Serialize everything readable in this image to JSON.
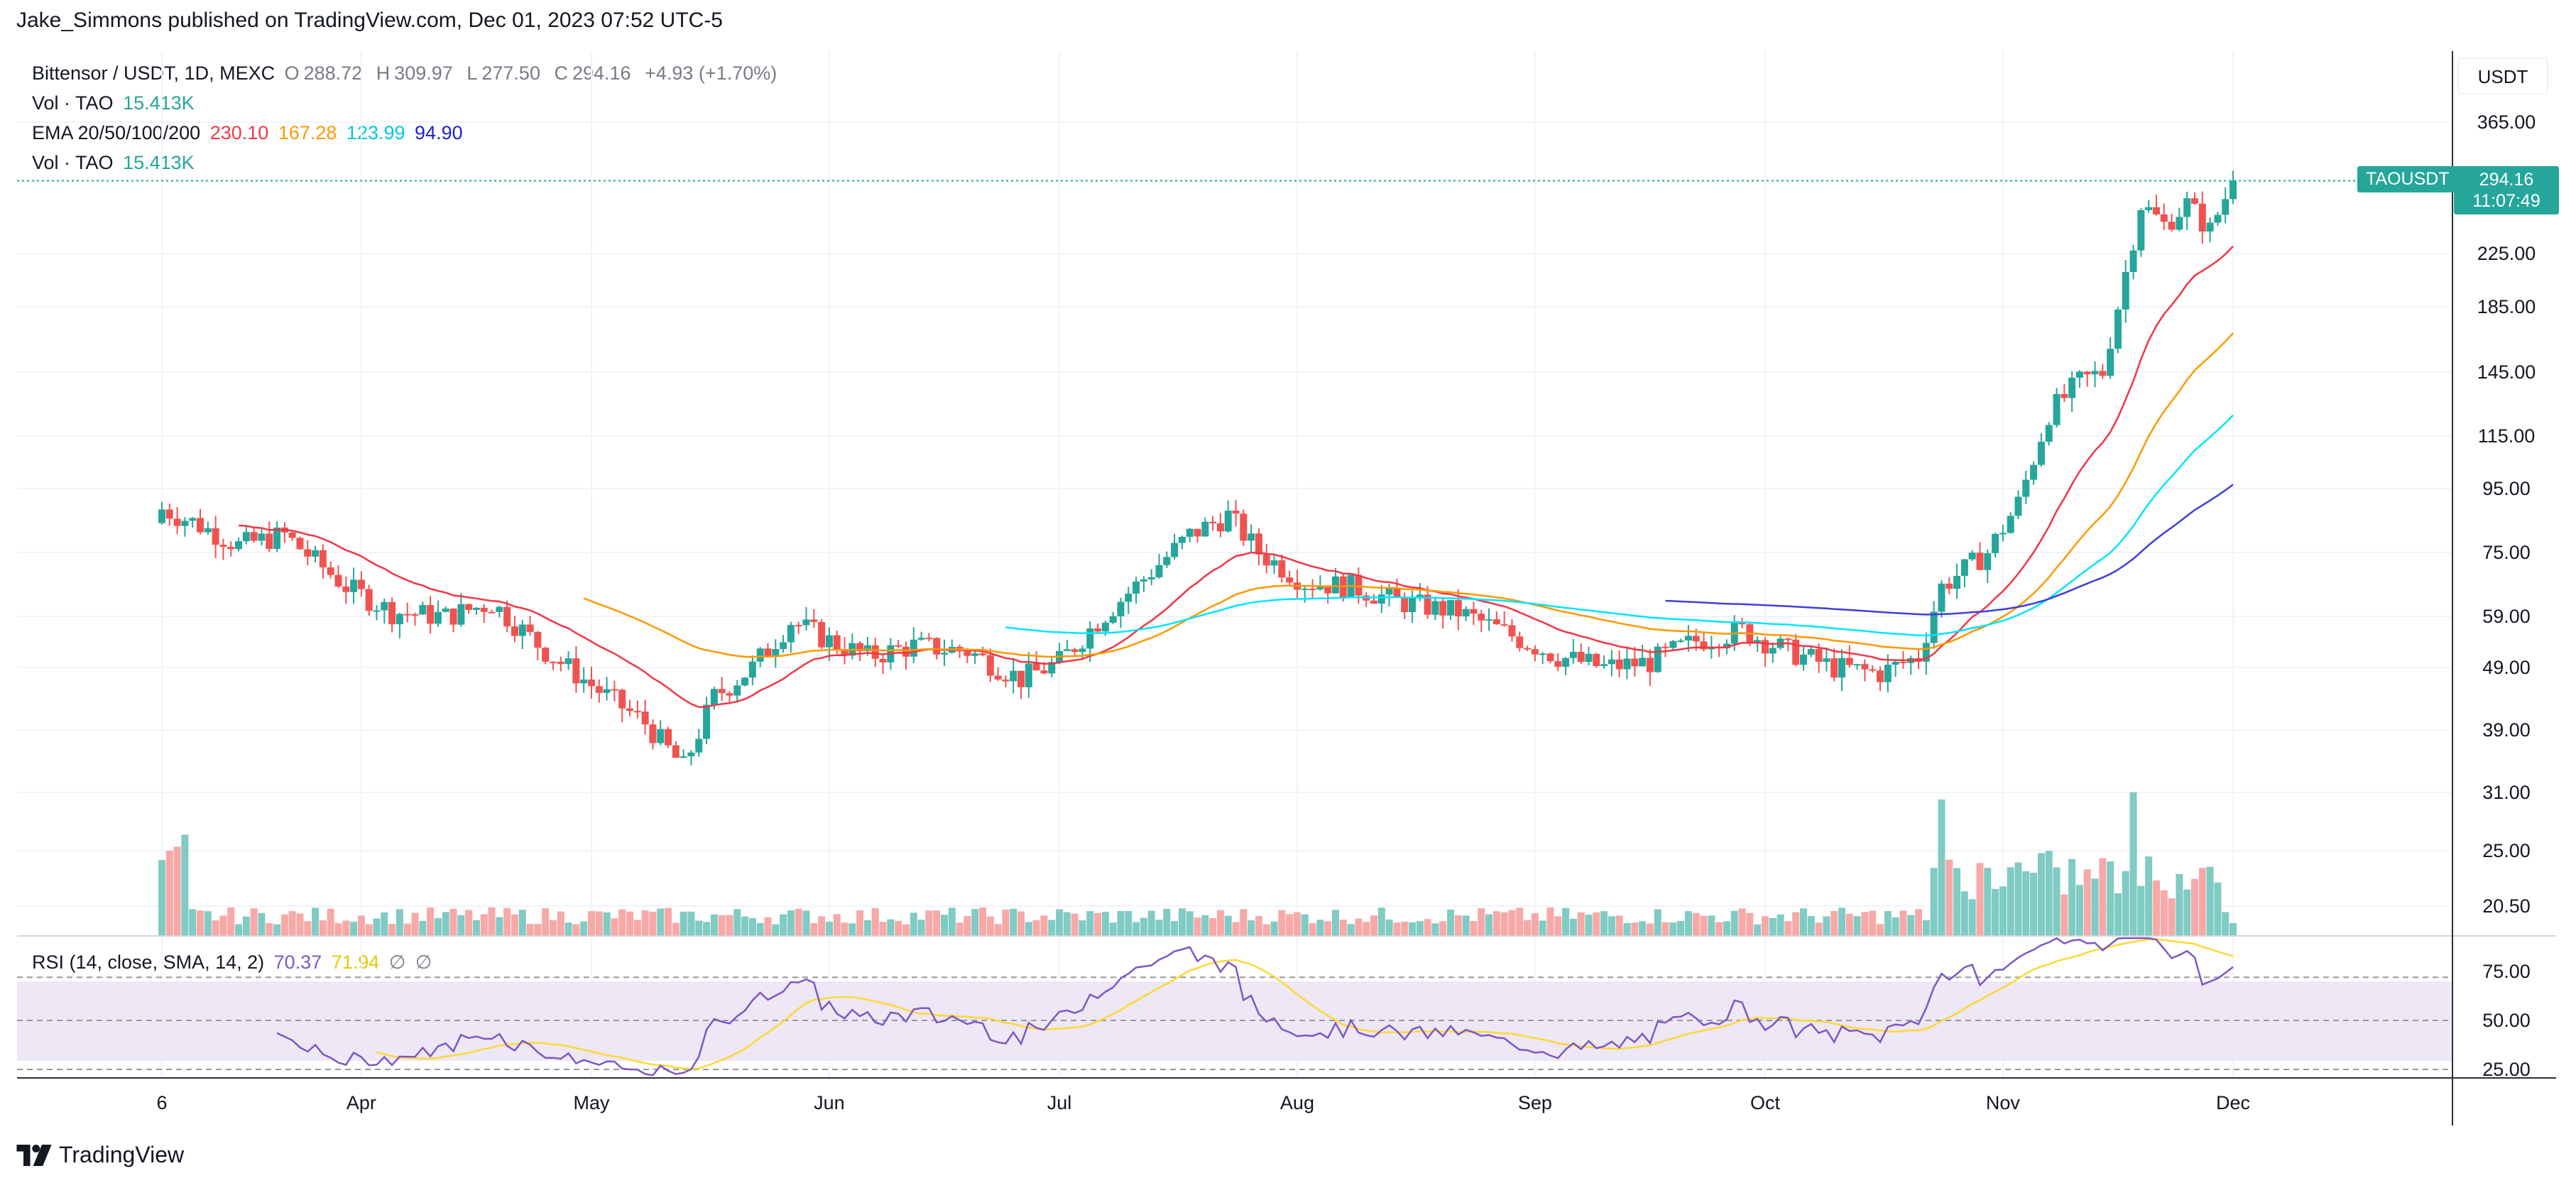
{
  "header": {
    "text": "Jake_Simmons published on TradingView.com, Dec 01, 2023 07:52 UTC-5"
  },
  "legend": {
    "symbol": "Bittensor / USDT, 1D, MEXC",
    "o_label": "O",
    "o": "288.72",
    "h_label": "H",
    "h": "309.97",
    "l_label": "L",
    "l": "277.50",
    "c_label": "C",
    "c": "294.16",
    "change": "+4.93 (+1.70%)",
    "vol1_label": "Vol · TAO",
    "vol1": "15.413K",
    "ema_label": "EMA 20/50/100/200",
    "ema20": "230.10",
    "ema50": "167.28",
    "ema100": "123.99",
    "ema200": "94.90",
    "vol2_label": "Vol · TAO",
    "vol2": "15.413K",
    "rsi_label": "RSI (14, close, SMA, 14, 2)",
    "rsi": "70.37",
    "rsi_sma": "71.94",
    "rsi_x1": "∅",
    "rsi_x2": "∅"
  },
  "price_badge": {
    "symbol": "TAOUSDT",
    "price": "294.16",
    "countdown": "11:07:49"
  },
  "currency": "USDT",
  "logo": {
    "text": "TradingView"
  },
  "colors": {
    "up": "#26a69a",
    "down": "#ef5350",
    "ema20": "#f23645",
    "ema50": "#ff9800",
    "ema100": "#00e5ff",
    "ema200": "#2962ff",
    "rsi": "#7e57c2",
    "rsi_sma": "#fdd835",
    "rsi_band": "#ede7f6"
  },
  "chart_data": {
    "type": "candlestick",
    "price_axis_ticks": [
      365,
      225,
      185,
      145,
      115,
      95,
      75,
      59,
      49,
      39,
      31,
      25,
      20.5
    ],
    "price_axis_labels": [
      "365.00",
      "225.00",
      "185.00",
      "145.00",
      "115.00",
      "95.00",
      "75.00",
      "59.00",
      "49.00",
      "39.00",
      "31.00",
      "25.00",
      "20.50"
    ],
    "rsi_axis_labels": [
      "75.00",
      "50.00",
      "25.00"
    ],
    "rsi_axis_ticks": [
      75,
      50,
      25
    ],
    "x_labels": [
      "6",
      "Apr",
      "May",
      "Jun",
      "Jul",
      "Aug",
      "Sep",
      "Oct",
      "Nov",
      "Dec"
    ],
    "close_anchors": [
      {
        "date": "2023-03-06",
        "close": 88
      },
      {
        "date": "2023-03-10",
        "close": 84
      },
      {
        "date": "2023-03-16",
        "close": 77
      },
      {
        "date": "2023-03-22",
        "close": 80
      },
      {
        "date": "2023-03-30",
        "close": 66
      },
      {
        "date": "2023-04-05",
        "close": 60
      },
      {
        "date": "2023-04-12",
        "close": 59
      },
      {
        "date": "2023-04-18",
        "close": 62
      },
      {
        "date": "2023-04-25",
        "close": 52
      },
      {
        "date": "2023-05-02",
        "close": 45
      },
      {
        "date": "2023-05-08",
        "close": 40
      },
      {
        "date": "2023-05-13",
        "close": 34
      },
      {
        "date": "2023-05-17",
        "close": 44
      },
      {
        "date": "2023-05-22",
        "close": 49
      },
      {
        "date": "2023-05-27",
        "close": 58
      },
      {
        "date": "2023-06-01",
        "close": 54
      },
      {
        "date": "2023-06-06",
        "close": 51
      },
      {
        "date": "2023-06-12",
        "close": 53
      },
      {
        "date": "2023-06-19",
        "close": 52
      },
      {
        "date": "2023-06-26",
        "close": 47
      },
      {
        "date": "2023-07-01",
        "close": 50
      },
      {
        "date": "2023-07-06",
        "close": 58
      },
      {
        "date": "2023-07-12",
        "close": 68
      },
      {
        "date": "2023-07-18",
        "close": 80
      },
      {
        "date": "2023-07-23",
        "close": 86
      },
      {
        "date": "2023-07-27",
        "close": 75
      },
      {
        "date": "2023-08-02",
        "close": 67
      },
      {
        "date": "2023-08-08",
        "close": 66
      },
      {
        "date": "2023-08-15",
        "close": 62
      },
      {
        "date": "2023-08-22",
        "close": 60
      },
      {
        "date": "2023-08-29",
        "close": 55
      },
      {
        "date": "2023-09-04",
        "close": 51
      },
      {
        "date": "2023-09-10",
        "close": 49
      },
      {
        "date": "2023-09-16",
        "close": 50
      },
      {
        "date": "2023-09-22",
        "close": 54
      },
      {
        "date": "2023-09-28",
        "close": 56
      },
      {
        "date": "2023-10-04",
        "close": 52
      },
      {
        "date": "2023-10-10",
        "close": 49
      },
      {
        "date": "2023-10-16",
        "close": 48
      },
      {
        "date": "2023-10-21",
        "close": 51
      },
      {
        "date": "2023-10-24",
        "close": 66
      },
      {
        "date": "2023-10-30",
        "close": 75
      },
      {
        "date": "2023-11-03",
        "close": 90
      },
      {
        "date": "2023-11-07",
        "close": 125
      },
      {
        "date": "2023-11-11",
        "close": 140
      },
      {
        "date": "2023-11-14",
        "close": 145
      },
      {
        "date": "2023-11-17",
        "close": 210
      },
      {
        "date": "2023-11-19",
        "close": 270
      },
      {
        "date": "2023-11-22",
        "close": 250
      },
      {
        "date": "2023-11-25",
        "close": 270
      },
      {
        "date": "2023-11-28",
        "close": 245
      },
      {
        "date": "2023-12-01",
        "close": 294.16
      }
    ],
    "ema_last": {
      "ema20": 230.1,
      "ema50": 167.28,
      "ema100": 123.99,
      "ema200": 94.9
    },
    "volume_last": "15.413K",
    "rsi_last": 70.37,
    "rsi_sma_last": 71.94,
    "last_price": 294.16
  }
}
